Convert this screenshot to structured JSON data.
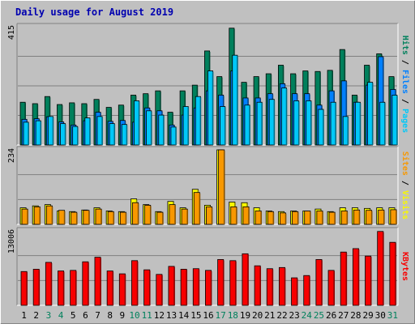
{
  "colors": {
    "background": "#c0c0c0",
    "border": "#ffffff",
    "title": "#0000b0",
    "grid": "#808080",
    "hits": "#00805c",
    "files": "#0080ff",
    "pages": "#00c8f8",
    "visits": "#f8f800",
    "sites": "#f89800",
    "kbytes": "#f80000",
    "day_weekday": "#000000",
    "day_weekend": "#00805c"
  },
  "chart_data": [
    {
      "type": "bar",
      "title": "Daily usage for August 2019",
      "categories": [
        "1",
        "2",
        "3",
        "4",
        "5",
        "6",
        "7",
        "8",
        "9",
        "10",
        "11",
        "12",
        "13",
        "14",
        "15",
        "16",
        "17",
        "18",
        "19",
        "20",
        "21",
        "22",
        "23",
        "24",
        "25",
        "26",
        "27",
        "28",
        "29",
        "30",
        "31"
      ],
      "weekend_days": [
        "3",
        "4",
        "10",
        "11",
        "17",
        "18",
        "24",
        "25",
        "31"
      ],
      "ymax_label": "415",
      "ylim": [
        0,
        415
      ],
      "series": [
        {
          "name": "Hits",
          "values": [
            150,
            145,
            170,
            142,
            148,
            145,
            160,
            132,
            140,
            175,
            180,
            190,
            115,
            190,
            210,
            330,
            240,
            410,
            220,
            240,
            250,
            280,
            250,
            260,
            258,
            262,
            335,
            175,
            280,
            320,
            240
          ]
        },
        {
          "name": "Files",
          "values": [
            90,
            92,
            99,
            81,
            70,
            85,
            115,
            83,
            86,
            80,
            130,
            120,
            70,
            105,
            130,
            190,
            175,
            260,
            165,
            165,
            180,
            215,
            180,
            180,
            140,
            190,
            225,
            150,
            210,
            310,
            195
          ]
        },
        {
          "name": "Pages",
          "values": [
            80,
            85,
            100,
            75,
            65,
            95,
            100,
            75,
            72,
            155,
            120,
            105,
            63,
            135,
            170,
            260,
            135,
            315,
            140,
            150,
            160,
            200,
            155,
            155,
            125,
            150,
            100,
            150,
            220,
            150,
            175
          ]
        }
      ],
      "legend": [
        "Hits",
        "Files",
        "Pages"
      ],
      "legend_placement": "right"
    },
    {
      "type": "bar",
      "categories": [
        "1",
        "2",
        "3",
        "4",
        "5",
        "6",
        "7",
        "8",
        "9",
        "10",
        "11",
        "12",
        "13",
        "14",
        "15",
        "16",
        "17",
        "18",
        "19",
        "20",
        "21",
        "22",
        "23",
        "24",
        "25",
        "26",
        "27",
        "28",
        "29",
        "30",
        "31"
      ],
      "ymax_label": "234",
      "ylim": [
        0,
        234
      ],
      "series": [
        {
          "name": "Visits",
          "values": [
            52,
            58,
            62,
            42,
            40,
            45,
            52,
            42,
            40,
            80,
            62,
            40,
            72,
            52,
            110,
            60,
            234,
            70,
            68,
            52,
            42,
            40,
            42,
            42,
            48,
            40,
            52,
            52,
            50,
            52,
            52
          ]
        },
        {
          "name": "Sites",
          "values": [
            48,
            55,
            58,
            44,
            38,
            44,
            48,
            40,
            38,
            68,
            60,
            38,
            62,
            48,
            100,
            55,
            234,
            55,
            55,
            42,
            40,
            36,
            40,
            42,
            42,
            38,
            42,
            45,
            44,
            45,
            46
          ]
        }
      ],
      "legend": [
        "Sites",
        "Visits"
      ],
      "legend_placement": "right"
    },
    {
      "type": "bar",
      "categories": [
        "1",
        "2",
        "3",
        "4",
        "5",
        "6",
        "7",
        "8",
        "9",
        "10",
        "11",
        "12",
        "13",
        "14",
        "15",
        "16",
        "17",
        "18",
        "19",
        "20",
        "21",
        "22",
        "23",
        "24",
        "25",
        "26",
        "27",
        "28",
        "29",
        "30",
        "31"
      ],
      "ymax_label": "13006",
      "ylim": [
        0,
        13006
      ],
      "series": [
        {
          "name": "KBytes",
          "values": [
            5900,
            6300,
            7500,
            6000,
            6100,
            7600,
            8400,
            6000,
            5500,
            7800,
            6200,
            5400,
            6800,
            6300,
            6400,
            6100,
            8000,
            7800,
            9000,
            6900,
            6400,
            6600,
            4800,
            5200,
            8000,
            6100,
            9300,
            9900,
            8600,
            12900,
            11000
          ]
        }
      ],
      "legend": [
        "KBytes"
      ],
      "legend_placement": "right"
    }
  ]
}
